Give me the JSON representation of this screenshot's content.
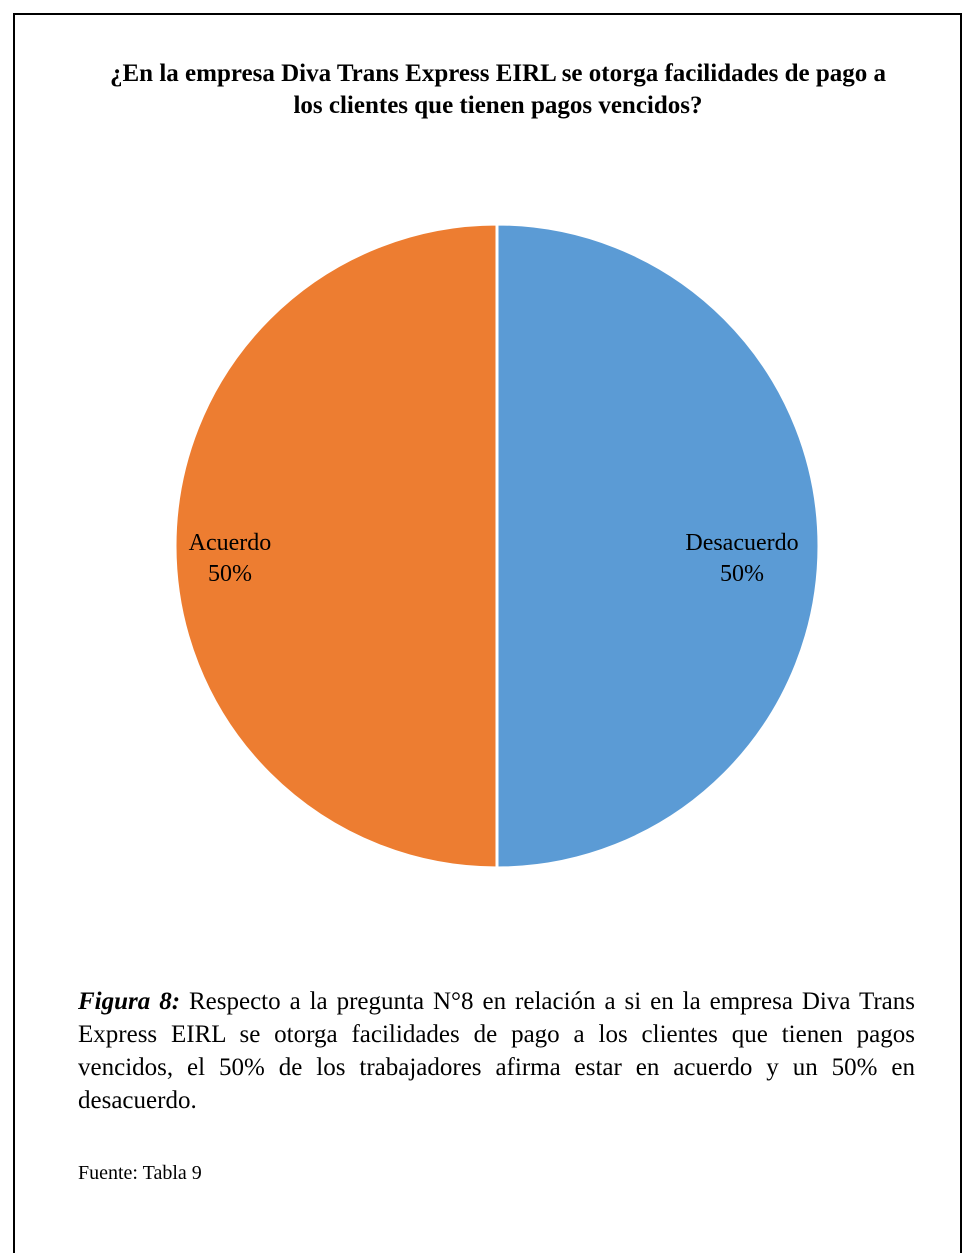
{
  "chart_data": {
    "type": "pie",
    "title": "¿En la empresa Diva Trans Express EIRL se otorga facilidades de pago a los clientes que tienen pagos vencidos?",
    "slices": [
      {
        "label": "Desacuerdo",
        "value": 50,
        "value_label": "50%",
        "color": "#5B9BD5"
      },
      {
        "label": "Acuerdo",
        "value": 50,
        "value_label": "50%",
        "color": "#ED7D31"
      }
    ]
  },
  "caption": {
    "figure_label": "Figura 8:",
    "text": "Respecto a la pregunta N°8 en relación a si en la empresa Diva Trans Express EIRL se otorga facilidades de pago a los clientes que tienen pagos vencidos, el 50% de los trabajadores afirma estar en acuerdo y un 50% en desacuerdo."
  },
  "source": "Fuente: Tabla 9"
}
